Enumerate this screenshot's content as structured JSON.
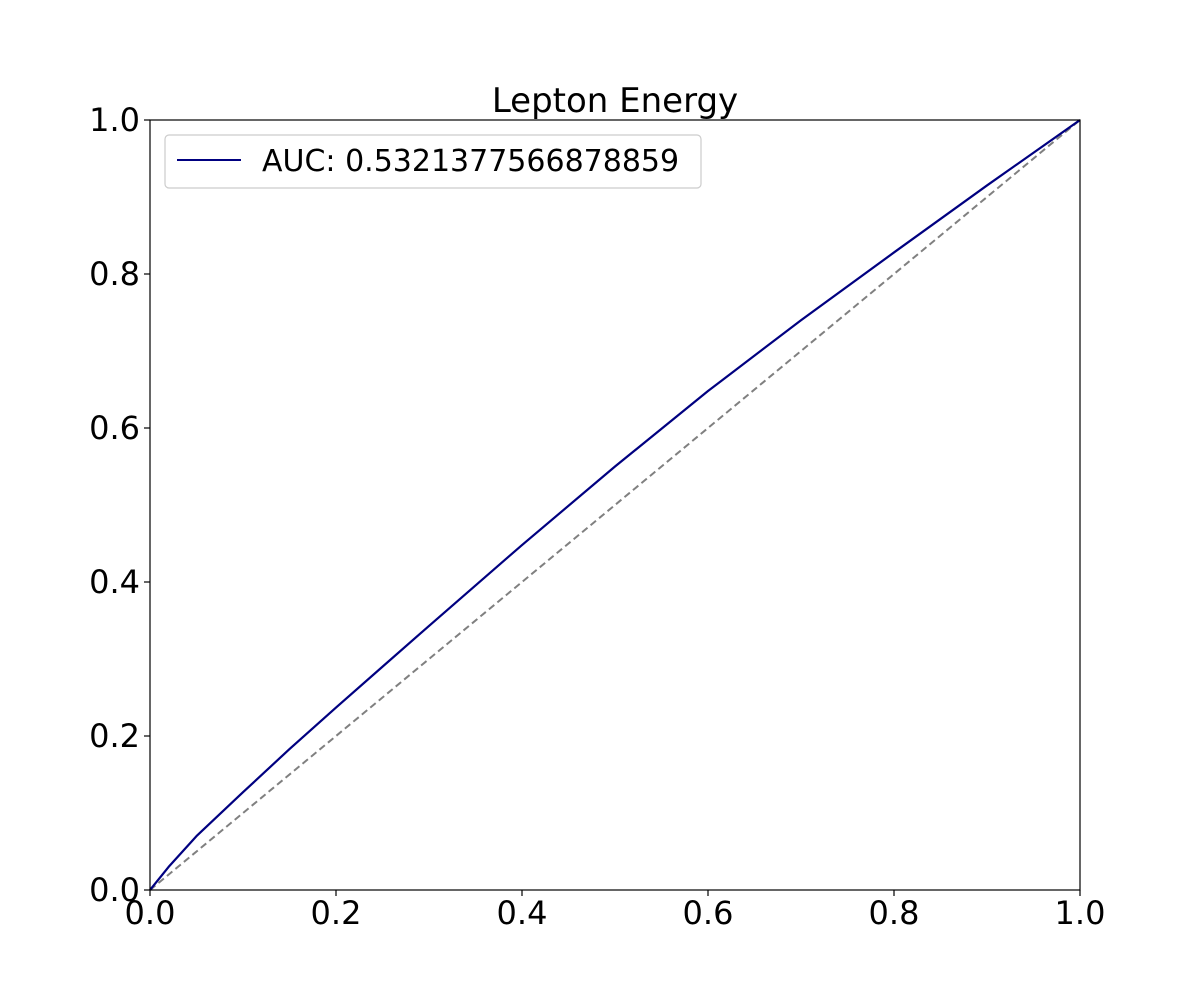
{
  "chart_data": {
    "type": "line",
    "title": "Lepton Energy",
    "xlabel": "",
    "ylabel": "",
    "xlim": [
      0.0,
      1.0
    ],
    "ylim": [
      0.0,
      1.0
    ],
    "x_ticks": [
      "0.0",
      "0.2",
      "0.4",
      "0.6",
      "0.8",
      "1.0"
    ],
    "y_ticks": [
      "0.0",
      "0.2",
      "0.4",
      "0.6",
      "0.8",
      "1.0"
    ],
    "grid": false,
    "legend_position": "upper-left",
    "series": [
      {
        "name": "AUC: 0.5321377566878859",
        "color": "#000080",
        "style": "solid",
        "x": [
          0.0,
          0.02,
          0.05,
          0.1,
          0.15,
          0.2,
          0.3,
          0.4,
          0.5,
          0.6,
          0.7,
          0.8,
          0.9,
          1.0
        ],
        "y": [
          0.0,
          0.03,
          0.07,
          0.127,
          0.183,
          0.237,
          0.343,
          0.448,
          0.55,
          0.648,
          0.74,
          0.828,
          0.915,
          1.0
        ]
      },
      {
        "color": "#808080",
        "style": "dashed",
        "x": [
          0.0,
          1.0
        ],
        "y": [
          0.0,
          1.0
        ]
      }
    ]
  }
}
